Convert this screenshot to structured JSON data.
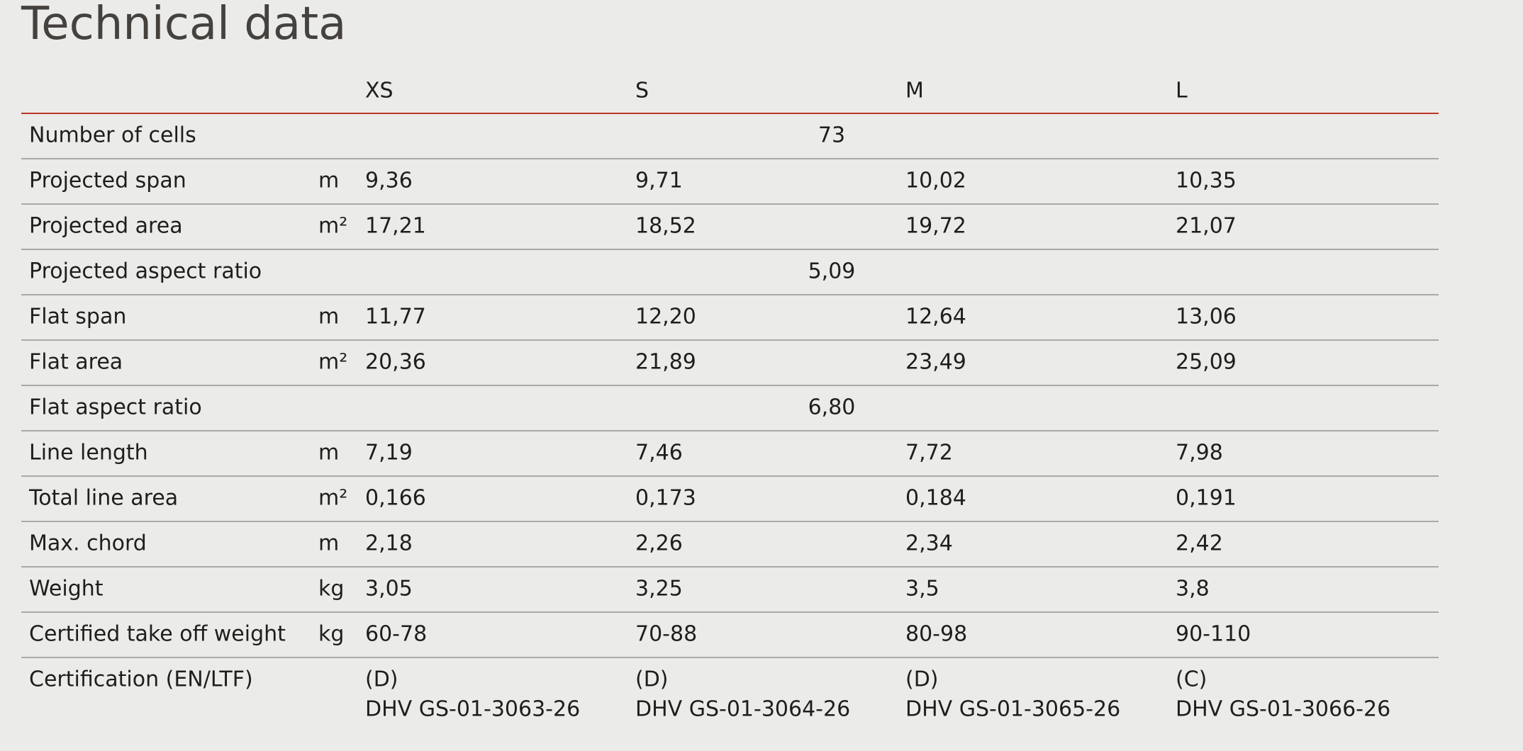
{
  "header": {
    "title": "Technical data"
  },
  "table": {
    "columns": [
      "XS",
      "S",
      "M",
      "L"
    ],
    "rows": [
      {
        "label": "Number of cells",
        "merged": "73"
      },
      {
        "label": "Projected span",
        "unit": "m",
        "values": [
          "9,36",
          "9,71",
          "10,02",
          "10,35"
        ]
      },
      {
        "label": "Projected area",
        "unit": "m²",
        "values": [
          "17,21",
          "18,52",
          "19,72",
          "21,07"
        ]
      },
      {
        "label": "Projected aspect ratio",
        "merged": "5,09"
      },
      {
        "label": "Flat span",
        "unit": "m",
        "values": [
          "11,77",
          "12,20",
          "12,64",
          "13,06"
        ]
      },
      {
        "label": "Flat area",
        "unit": "m²",
        "values": [
          "20,36",
          "21,89",
          "23,49",
          "25,09"
        ]
      },
      {
        "label": "Flat aspect ratio",
        "merged": "6,80"
      },
      {
        "label": "Line length",
        "unit": "m",
        "values": [
          "7,19",
          "7,46",
          "7,72",
          "7,98"
        ]
      },
      {
        "label": "Total line area",
        "unit": "m²",
        "values": [
          "0,166",
          "0,173",
          "0,184",
          "0,191"
        ]
      },
      {
        "label": "Max. chord",
        "unit": "m",
        "values": [
          "2,18",
          "2,26",
          "2,34",
          "2,42"
        ]
      },
      {
        "label": "Weight",
        "unit": "kg",
        "values": [
          "3,05",
          "3,25",
          "3,5",
          "3,8"
        ]
      },
      {
        "label": "Certified take off weight",
        "unit": "kg",
        "values": [
          "60-78",
          "70-88",
          "80-98",
          "90-110"
        ]
      },
      {
        "label": "Certification (EN/LTF)",
        "values": [
          [
            "(D)",
            "DHV GS-01-3063-26"
          ],
          [
            "(D)",
            "DHV GS-01-3064-26"
          ],
          [
            "(D)",
            "DHV GS-01-3065-26"
          ],
          [
            "(C)",
            "DHV GS-01-3066-26"
          ]
        ]
      }
    ]
  }
}
